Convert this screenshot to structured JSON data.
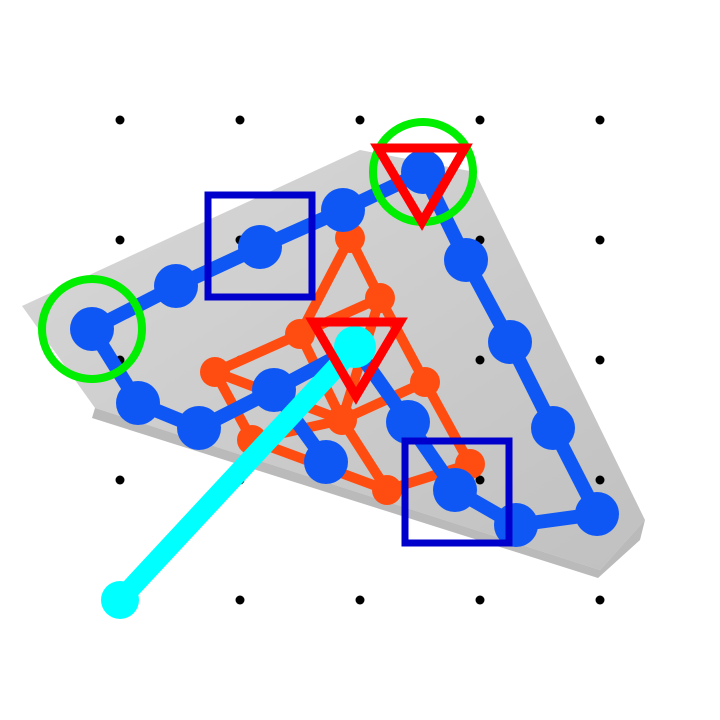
{
  "scene": {
    "type": "puzzle-board",
    "background_color": "#ffffff",
    "slab_color": "#c8c8c8",
    "grid_dot_color": "#000000",
    "orange_net_color": "#ff4d12",
    "blue_chain_color": "#0f57f5",
    "cursor_color": "#00ffff",
    "square_marker_color": "#0000cc",
    "triangle_marker_color": "#ff0000",
    "circle_marker_color": "#00ee00"
  },
  "counts": {
    "grid_dots": 24,
    "blue_nodes": 17,
    "orange_nodes": 9,
    "square_markers": 2,
    "triangle_markers": 2,
    "circle_markers": 2
  }
}
